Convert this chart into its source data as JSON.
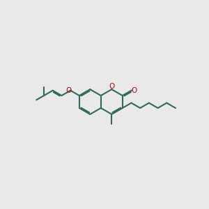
{
  "bg_color": "#e9e9e9",
  "bond_color": "#2d6b5a",
  "o_color": "#cc0000",
  "lw": 1.5,
  "figsize": [
    3.0,
    3.0
  ],
  "dpi": 100,
  "fontsize": 7.5,
  "xlim": [
    -4.5,
    8.5
  ],
  "ylim": [
    -2.5,
    3.5
  ]
}
